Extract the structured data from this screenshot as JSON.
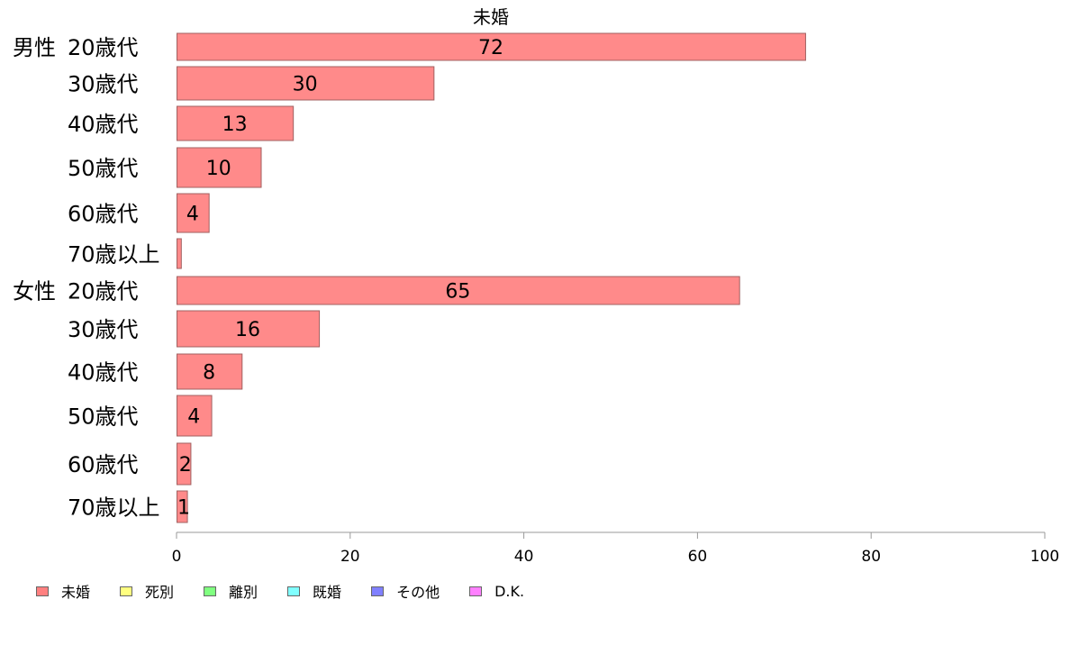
{
  "chart_data": {
    "type": "bar",
    "orientation": "horizontal",
    "title": "未婚",
    "groups": [
      {
        "label": "男性",
        "categories": [
          "20歳代",
          "30歳代",
          "40歳代",
          "50歳代",
          "60歳代",
          "70歳以上"
        ],
        "values": [
          72.4,
          29.6,
          13.4,
          9.7,
          3.7,
          0.5
        ],
        "data_labels": [
          "72",
          "30",
          "13",
          "10",
          "4",
          ""
        ]
      },
      {
        "label": "女性",
        "categories": [
          "20歳代",
          "30歳代",
          "40歳代",
          "50歳代",
          "60歳代",
          "70歳以上"
        ],
        "values": [
          64.8,
          16.4,
          7.5,
          4.0,
          1.6,
          1.2
        ],
        "data_labels": [
          "65",
          "16",
          "8",
          "4",
          "2",
          "1"
        ]
      }
    ],
    "xlim": [
      0,
      100
    ],
    "xticks": [
      0,
      20,
      40,
      60,
      80,
      100
    ],
    "bar_color": "#ff8a8a",
    "bar_border_color": "#a06060",
    "legend": [
      {
        "label": "未婚",
        "color": "#ff8080"
      },
      {
        "label": "死別",
        "color": "#ffff80"
      },
      {
        "label": "離別",
        "color": "#80ff80"
      },
      {
        "label": "既婚",
        "color": "#80ffff"
      },
      {
        "label": "その他",
        "color": "#8080ff"
      },
      {
        "label": "D.K.",
        "color": "#ff80ff"
      }
    ],
    "legend_position": "bottom-left",
    "grid": false
  }
}
